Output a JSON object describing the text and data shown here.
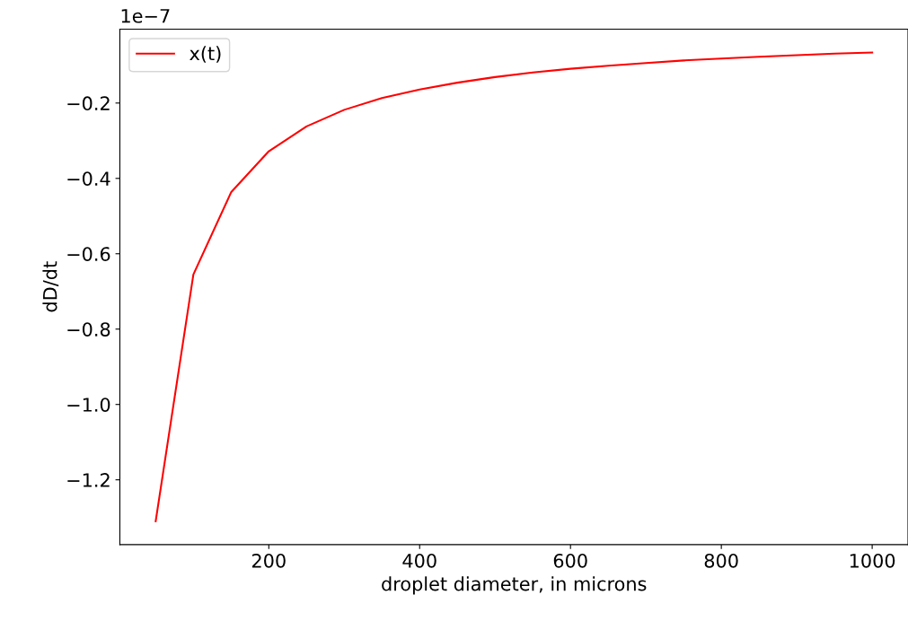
{
  "chart_data": {
    "type": "line",
    "xlabel": "droplet diameter, in microns",
    "ylabel": "dD/dt",
    "annotations": [
      "1e−7"
    ],
    "x": [
      50,
      100,
      150,
      200,
      250,
      300,
      350,
      400,
      450,
      500,
      550,
      600,
      650,
      700,
      750,
      800,
      850,
      900,
      950,
      1000
    ],
    "series": [
      {
        "name": "x(t)",
        "color": "#ff0000",
        "values": [
          -1.31,
          -0.655,
          -0.437,
          -0.328,
          -0.262,
          -0.218,
          -0.187,
          -0.164,
          -0.146,
          -0.131,
          -0.119,
          -0.109,
          -0.101,
          -0.094,
          -0.087,
          -0.082,
          -0.077,
          -0.073,
          -0.069,
          -0.066
        ]
      }
    ],
    "xlim": [
      2.5,
      1047.5
    ],
    "xticks": [
      200,
      400,
      600,
      800,
      1000
    ],
    "ylim": [
      -1.372,
      -0.004
    ],
    "yticks": [
      {
        "value": -1.2,
        "label": "−1.2"
      },
      {
        "value": -1.0,
        "label": "−1.0"
      },
      {
        "value": -0.8,
        "label": "−0.8"
      },
      {
        "value": -0.6,
        "label": "−0.6"
      },
      {
        "value": -0.4,
        "label": "−0.4"
      },
      {
        "value": -0.2,
        "label": "−0.2"
      }
    ],
    "legend": "top left",
    "grid": false,
    "marker": "none",
    "line_style": "solid"
  }
}
